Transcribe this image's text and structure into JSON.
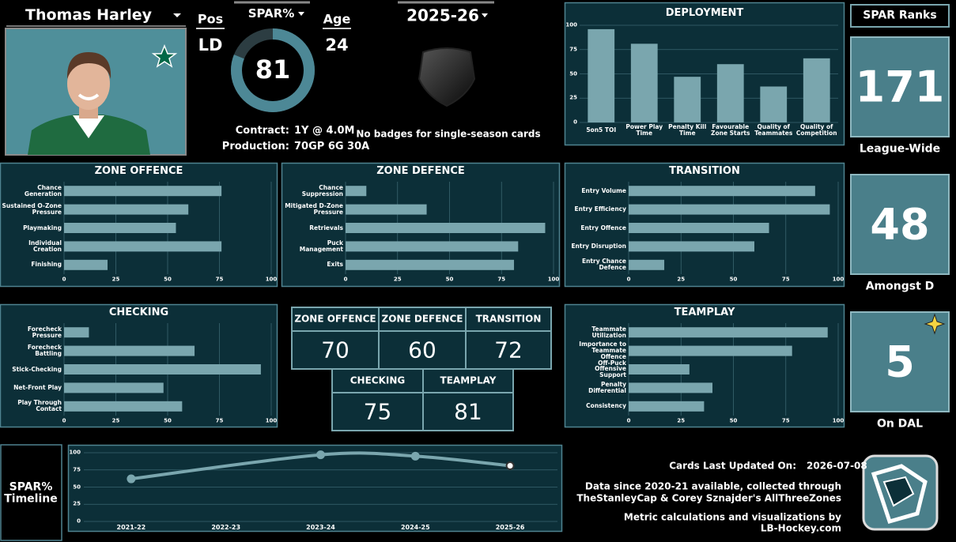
{
  "player": {
    "name": "Thomas Harley",
    "pos_label": "Pos",
    "pos": "LD",
    "spar_label": "SPAR%",
    "spar": 81,
    "age_label": "Age",
    "age": 24,
    "season": "2025-26",
    "contract_label": "Contract:",
    "contract": "1Y @ 4.0M",
    "production_label": "Production:",
    "production": "70GP 6G 30A",
    "badges_note": "No badges for single-season cards"
  },
  "chart_data": [
    {
      "type": "bar",
      "title": "DEPLOYMENT",
      "categories": [
        "5on5 TOI",
        "Power Play Time",
        "Penalty Kill Time",
        "Favourable Zone Starts",
        "Quality of Teammates",
        "Quality of Competition"
      ],
      "values": [
        96,
        81,
        47,
        60,
        37,
        66
      ],
      "ylim": [
        0,
        100
      ],
      "yticks": [
        0,
        25,
        50,
        75,
        100
      ],
      "color": "#7aa6ae",
      "grid": true
    },
    {
      "type": "barh",
      "title": "ZONE OFFENCE",
      "categories": [
        "Chance Generation",
        "Sustained O-Zone Pressure",
        "Playmaking",
        "Individual Creation",
        "Finishing"
      ],
      "values": [
        76,
        60,
        54,
        76,
        21
      ],
      "xlim": [
        0,
        100
      ],
      "xticks": [
        0,
        25,
        50,
        75,
        100
      ],
      "color": "#7aa6ae",
      "grid": true
    },
    {
      "type": "barh",
      "title": "ZONE DEFENCE",
      "categories": [
        "Chance Suppression",
        "Mitigated D-Zone Pressure",
        "Retrievals",
        "Puck Management",
        "Exits"
      ],
      "values": [
        10,
        39,
        96,
        83,
        81
      ],
      "xlim": [
        0,
        100
      ],
      "xticks": [
        0,
        25,
        50,
        75,
        100
      ],
      "color": "#7aa6ae",
      "grid": true
    },
    {
      "type": "barh",
      "title": "TRANSITION",
      "categories": [
        "Entry Volume",
        "Entry Efficiency",
        "Entry Offence",
        "Entry Disruption",
        "Entry Chance Defence"
      ],
      "values": [
        89,
        96,
        67,
        60,
        17
      ],
      "xlim": [
        0,
        100
      ],
      "xticks": [
        0,
        25,
        50,
        75,
        100
      ],
      "color": "#7aa6ae",
      "grid": true
    },
    {
      "type": "barh",
      "title": "CHECKING",
      "categories": [
        "Forecheck Pressure",
        "Forecheck Battling",
        "Stick-Checking",
        "Net-Front Play",
        "Play Through Contact"
      ],
      "values": [
        12,
        63,
        95,
        48,
        57
      ],
      "xlim": [
        0,
        100
      ],
      "xticks": [
        0,
        25,
        50,
        75,
        100
      ],
      "color": "#7aa6ae",
      "grid": true
    },
    {
      "type": "barh",
      "title": "TEAMPLAY",
      "categories": [
        "Teammate Utilization",
        "Importance to Teammate Offence",
        "Off-Puck Offensive Support",
        "Penalty Differential",
        "Consistency"
      ],
      "values": [
        95,
        78,
        29,
        40,
        36
      ],
      "xlim": [
        0,
        100
      ],
      "xticks": [
        0,
        25,
        50,
        75,
        100
      ],
      "color": "#7aa6ae",
      "grid": true
    },
    {
      "type": "line",
      "title": "SPAR% Timeline",
      "categories": [
        "2021-22",
        "2022-23",
        "2023-24",
        "2024-25",
        "2025-26"
      ],
      "x": [
        "2021-22",
        "2023-24",
        "2024-25",
        "2025-26"
      ],
      "values": [
        62,
        97,
        95,
        81
      ],
      "ylim": [
        0,
        100
      ],
      "yticks": [
        0,
        25,
        50,
        75,
        100
      ],
      "color": "#7aa6ae",
      "grid": true
    }
  ],
  "scores": {
    "labels": [
      "ZONE OFFENCE",
      "ZONE DEFENCE",
      "TRANSITION",
      "CHECKING",
      "TEAMPLAY"
    ],
    "values": [
      70,
      60,
      72,
      75,
      81
    ]
  },
  "ranks": {
    "title": "SPAR Ranks",
    "items": [
      {
        "value": 171,
        "label": "League-Wide"
      },
      {
        "value": 48,
        "label": "Amongst D"
      },
      {
        "value": 5,
        "label": "On DAL"
      }
    ]
  },
  "footer": {
    "updated_label": "Cards Last Updated On:",
    "updated": "2026-07-08",
    "lines": [
      "Data since 2020-21 available, collected through",
      "TheStanleyCap & Corey Sznajder's AllThreeZones",
      "Metric calculations and visualizations by",
      "LB-Hockey.com"
    ]
  }
}
